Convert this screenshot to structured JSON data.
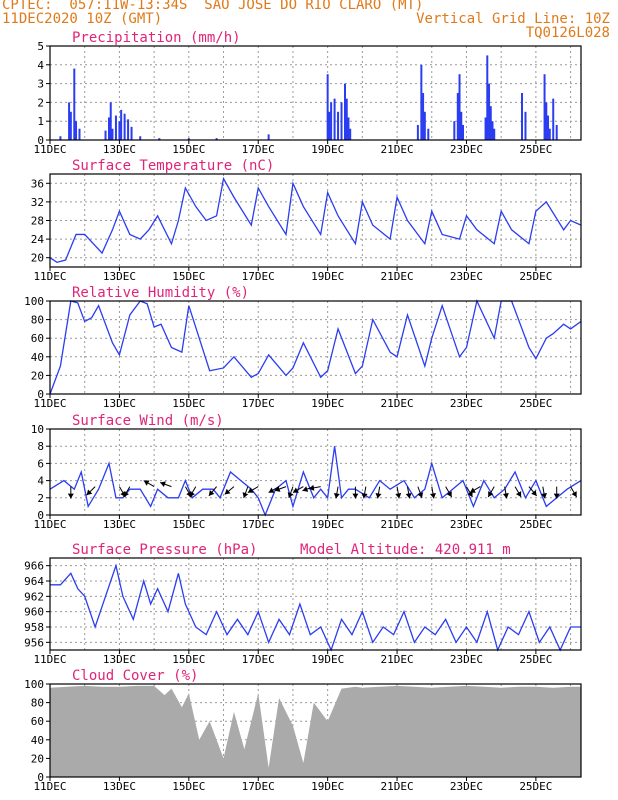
{
  "header": {
    "line1_left": "CPTEC:  057:11W-13:34S  SAO JOSE DO RIO CLARO (MT)",
    "line2_left": "11DEC2020 10Z (GMT)",
    "line2_right": "Vertical Grid Line: 10Z",
    "line3_right": "TQ0126L028"
  },
  "x_labels": [
    "11DEC",
    "13DEC",
    "15DEC",
    "17DEC",
    "19DEC",
    "21DEC",
    "23DEC",
    "25DEC"
  ],
  "x_label_offsets": [
    0,
    2,
    4,
    6,
    8,
    10,
    12,
    14
  ],
  "colors": {
    "series": "#2b3df0",
    "title": "#e0247a",
    "header": "#e07a1a",
    "cloud": "#aaaaaa"
  },
  "chart_data": [
    {
      "id": "precip",
      "type": "bar",
      "title": "Precipitation (mm/h)",
      "ylim": [
        0,
        5
      ],
      "yticks": [
        0,
        1,
        2,
        3,
        4,
        5
      ],
      "x_unit": "days since 11DEC 10Z",
      "bars": [
        [
          0.3,
          0.2
        ],
        [
          0.55,
          2.0
        ],
        [
          0.6,
          1.5
        ],
        [
          0.7,
          3.8
        ],
        [
          0.75,
          1.0
        ],
        [
          0.85,
          0.6
        ],
        [
          1.6,
          0.5
        ],
        [
          1.7,
          1.2
        ],
        [
          1.75,
          2.0
        ],
        [
          1.8,
          0.6
        ],
        [
          1.9,
          1.3
        ],
        [
          2.0,
          1.0
        ],
        [
          2.05,
          1.6
        ],
        [
          2.15,
          1.4
        ],
        [
          2.25,
          1.1
        ],
        [
          2.35,
          0.7
        ],
        [
          2.6,
          0.2
        ],
        [
          3.15,
          0.1
        ],
        [
          4.0,
          0.1
        ],
        [
          4.8,
          0.1
        ],
        [
          6.3,
          0.3
        ],
        [
          8.0,
          3.5
        ],
        [
          8.05,
          1.5
        ],
        [
          8.1,
          2.0
        ],
        [
          8.2,
          2.2
        ],
        [
          8.3,
          1.5
        ],
        [
          8.4,
          2.0
        ],
        [
          8.5,
          3.0
        ],
        [
          8.55,
          2.2
        ],
        [
          8.6,
          1.2
        ],
        [
          8.65,
          0.6
        ],
        [
          10.6,
          0.8
        ],
        [
          10.7,
          4.0
        ],
        [
          10.75,
          2.5
        ],
        [
          10.8,
          1.5
        ],
        [
          10.9,
          0.6
        ],
        [
          11.65,
          1.0
        ],
        [
          11.75,
          2.5
        ],
        [
          11.8,
          3.5
        ],
        [
          11.85,
          1.5
        ],
        [
          11.9,
          0.8
        ],
        [
          12.55,
          1.2
        ],
        [
          12.6,
          4.5
        ],
        [
          12.65,
          3.0
        ],
        [
          12.7,
          1.8
        ],
        [
          12.75,
          1.0
        ],
        [
          12.8,
          0.6
        ],
        [
          13.6,
          2.5
        ],
        [
          13.7,
          1.5
        ],
        [
          14.25,
          3.5
        ],
        [
          14.3,
          2.0
        ],
        [
          14.35,
          1.3
        ],
        [
          14.4,
          0.6
        ],
        [
          14.5,
          2.2
        ],
        [
          14.6,
          0.8
        ]
      ]
    },
    {
      "id": "temp",
      "type": "line",
      "title": "Surface Temperature (nC)",
      "ylim": [
        18,
        38
      ],
      "yticks": [
        20,
        24,
        28,
        32,
        36
      ],
      "x_unit": "days since 11DEC 10Z",
      "x": [
        0,
        0.2,
        0.45,
        0.75,
        1.0,
        1.5,
        1.8,
        2.0,
        2.3,
        2.6,
        2.85,
        3.1,
        3.5,
        3.7,
        3.9,
        4.2,
        4.5,
        4.8,
        5.0,
        5.3,
        5.8,
        6.0,
        6.3,
        6.8,
        7.0,
        7.3,
        7.8,
        8.0,
        8.3,
        8.8,
        9.0,
        9.3,
        9.8,
        10.0,
        10.3,
        10.8,
        11.0,
        11.3,
        11.8,
        12.0,
        12.3,
        12.8,
        13.0,
        13.3,
        13.8,
        14.0,
        14.3,
        14.8,
        15.0,
        15.3
      ],
      "y": [
        20,
        19,
        19.5,
        25,
        25,
        21,
        26,
        30,
        25,
        24,
        26,
        29,
        23,
        28,
        35,
        31,
        28,
        29,
        37,
        33,
        27,
        35,
        31,
        25,
        36,
        31,
        25,
        34,
        29,
        23,
        32,
        27,
        24,
        33,
        28,
        23,
        30,
        25,
        24,
        29,
        26,
        23,
        30,
        26,
        23,
        30,
        32,
        26,
        28,
        27
      ]
    },
    {
      "id": "rh",
      "type": "line",
      "title": "Relative Humidity (%)",
      "ylim": [
        0,
        100
      ],
      "yticks": [
        0,
        20,
        40,
        60,
        80,
        100
      ],
      "x_unit": "days since 11DEC 10Z",
      "x": [
        0,
        0.3,
        0.6,
        0.8,
        1.0,
        1.2,
        1.4,
        1.8,
        2.0,
        2.3,
        2.6,
        2.8,
        3.0,
        3.2,
        3.5,
        3.8,
        4.0,
        4.3,
        4.6,
        5.0,
        5.3,
        5.8,
        6.0,
        6.3,
        6.8,
        7.0,
        7.3,
        7.8,
        8.0,
        8.3,
        8.8,
        9.0,
        9.3,
        9.8,
        10.0,
        10.3,
        10.8,
        11.0,
        11.3,
        11.8,
        12.0,
        12.3,
        12.8,
        13.0,
        13.3,
        13.8,
        14.0,
        14.3,
        14.5,
        14.8,
        15.0,
        15.3
      ],
      "y": [
        0,
        30,
        100,
        98,
        78,
        82,
        95,
        55,
        42,
        85,
        100,
        97,
        72,
        75,
        50,
        45,
        95,
        60,
        25,
        28,
        40,
        18,
        22,
        42,
        20,
        28,
        55,
        18,
        25,
        70,
        22,
        30,
        80,
        45,
        40,
        85,
        30,
        60,
        95,
        40,
        50,
        100,
        60,
        100,
        100,
        50,
        38,
        60,
        65,
        75,
        70,
        78
      ]
    },
    {
      "id": "wind",
      "type": "line",
      "title": "Surface Wind (m/s)",
      "ylim": [
        0,
        10
      ],
      "yticks": [
        0,
        2,
        4,
        6,
        8,
        10
      ],
      "x_unit": "days since 11DEC 10Z",
      "x": [
        0,
        0.4,
        0.7,
        0.9,
        1.1,
        1.4,
        1.7,
        1.9,
        2.1,
        2.3,
        2.6,
        2.9,
        3.1,
        3.4,
        3.7,
        3.9,
        4.1,
        4.4,
        4.7,
        4.9,
        5.2,
        5.5,
        5.8,
        6.0,
        6.2,
        6.5,
        6.8,
        7.0,
        7.3,
        7.6,
        7.8,
        8.0,
        8.2,
        8.4,
        8.6,
        8.8,
        9.2,
        9.5,
        9.8,
        10.2,
        10.5,
        10.8,
        11.0,
        11.3,
        11.6,
        11.9,
        12.2,
        12.5,
        12.8,
        13.1,
        13.4,
        13.7,
        14.0,
        14.3,
        14.6,
        14.9,
        15.3
      ],
      "y": [
        3,
        4,
        3,
        5,
        1,
        3,
        6,
        2,
        2,
        3,
        3,
        1,
        3,
        2,
        2,
        4,
        2,
        3,
        3,
        2,
        5,
        4,
        3,
        2,
        0,
        3,
        4,
        1,
        5,
        2,
        3,
        2,
        8,
        2,
        3,
        3,
        2,
        4,
        3,
        4,
        2,
        3,
        6,
        2,
        3,
        4,
        1,
        4,
        2,
        3,
        5,
        2,
        4,
        1,
        2,
        3,
        4
      ],
      "arrows": [
        [
          0.6,
          -90
        ],
        [
          1.3,
          -135
        ],
        [
          2.0,
          -60
        ],
        [
          2.3,
          -120
        ],
        [
          3.0,
          150
        ],
        [
          3.5,
          160
        ],
        [
          3.9,
          -60
        ],
        [
          4.2,
          -120
        ],
        [
          4.8,
          -130
        ],
        [
          5.3,
          -140
        ],
        [
          5.7,
          -110
        ],
        [
          6.0,
          -150
        ],
        [
          6.6,
          -150
        ],
        [
          6.8,
          -160
        ],
        [
          7.0,
          -110
        ],
        [
          7.3,
          -150
        ],
        [
          7.6,
          -160
        ],
        [
          7.8,
          -170
        ],
        [
          8.3,
          -100
        ],
        [
          8.8,
          -90
        ],
        [
          9.1,
          -100
        ],
        [
          9.5,
          -100
        ],
        [
          10.0,
          -80
        ],
        [
          10.3,
          -80
        ],
        [
          10.6,
          -70
        ],
        [
          11.0,
          -80
        ],
        [
          11.4,
          -60
        ],
        [
          12.0,
          -60
        ],
        [
          12.4,
          -150
        ],
        [
          12.8,
          -120
        ],
        [
          13.1,
          -80
        ],
        [
          13.4,
          -60
        ],
        [
          13.8,
          -50
        ],
        [
          14.2,
          -80
        ],
        [
          14.6,
          -90
        ],
        [
          15.0,
          -60
        ]
      ]
    },
    {
      "id": "pressure",
      "type": "line",
      "title": "Surface Pressure (hPa)",
      "title_right": "Model Altitude: 420.911 m",
      "ylim": [
        955,
        967
      ],
      "yticks": [
        956,
        958,
        960,
        962,
        964,
        966
      ],
      "x_unit": "days since 11DEC 10Z",
      "x": [
        0,
        0.3,
        0.6,
        0.8,
        1.0,
        1.3,
        1.6,
        1.9,
        2.1,
        2.4,
        2.7,
        2.9,
        3.1,
        3.4,
        3.7,
        3.9,
        4.2,
        4.5,
        4.8,
        5.1,
        5.4,
        5.7,
        6.0,
        6.3,
        6.6,
        6.9,
        7.2,
        7.5,
        7.8,
        8.1,
        8.4,
        8.7,
        9.0,
        9.3,
        9.6,
        9.9,
        10.2,
        10.5,
        10.8,
        11.1,
        11.4,
        11.7,
        12.0,
        12.3,
        12.6,
        12.9,
        13.2,
        13.5,
        13.8,
        14.1,
        14.4,
        14.7,
        15.0,
        15.3
      ],
      "y": [
        963.5,
        963.5,
        965,
        963,
        962,
        958,
        962,
        966,
        962,
        959,
        964,
        961,
        963,
        960,
        965,
        961,
        958,
        957,
        960,
        957,
        959,
        957,
        960,
        956,
        959,
        957,
        961,
        957,
        958,
        955,
        959,
        957,
        960,
        956,
        958,
        957,
        960,
        956,
        958,
        957,
        959,
        956,
        958,
        956,
        960,
        955,
        958,
        957,
        960,
        956,
        958,
        955,
        958,
        958
      ]
    },
    {
      "id": "cloud",
      "type": "area",
      "title": "Cloud Cover (%)",
      "ylim": [
        0,
        100
      ],
      "yticks": [
        0,
        20,
        40,
        60,
        80,
        100
      ],
      "x_unit": "days since 11DEC 10Z",
      "x": [
        0,
        0.5,
        1.0,
        1.5,
        2.0,
        2.5,
        3.0,
        3.3,
        3.5,
        3.8,
        4.0,
        4.3,
        4.6,
        5.0,
        5.3,
        5.6,
        6.0,
        6.3,
        6.6,
        7.0,
        7.3,
        7.6,
        8.0,
        8.4,
        8.8,
        9.0,
        9.5,
        10.0,
        10.5,
        11.0,
        11.5,
        12.0,
        12.5,
        13.0,
        13.5,
        14.0,
        14.5,
        15.0,
        15.3
      ],
      "y": [
        96,
        97,
        98,
        97,
        97,
        98,
        98,
        88,
        95,
        75,
        90,
        40,
        60,
        20,
        70,
        30,
        90,
        10,
        85,
        55,
        15,
        80,
        60,
        95,
        97,
        96,
        97,
        98,
        97,
        96,
        97,
        98,
        97,
        96,
        97,
        97,
        96,
        97,
        97
      ]
    }
  ]
}
